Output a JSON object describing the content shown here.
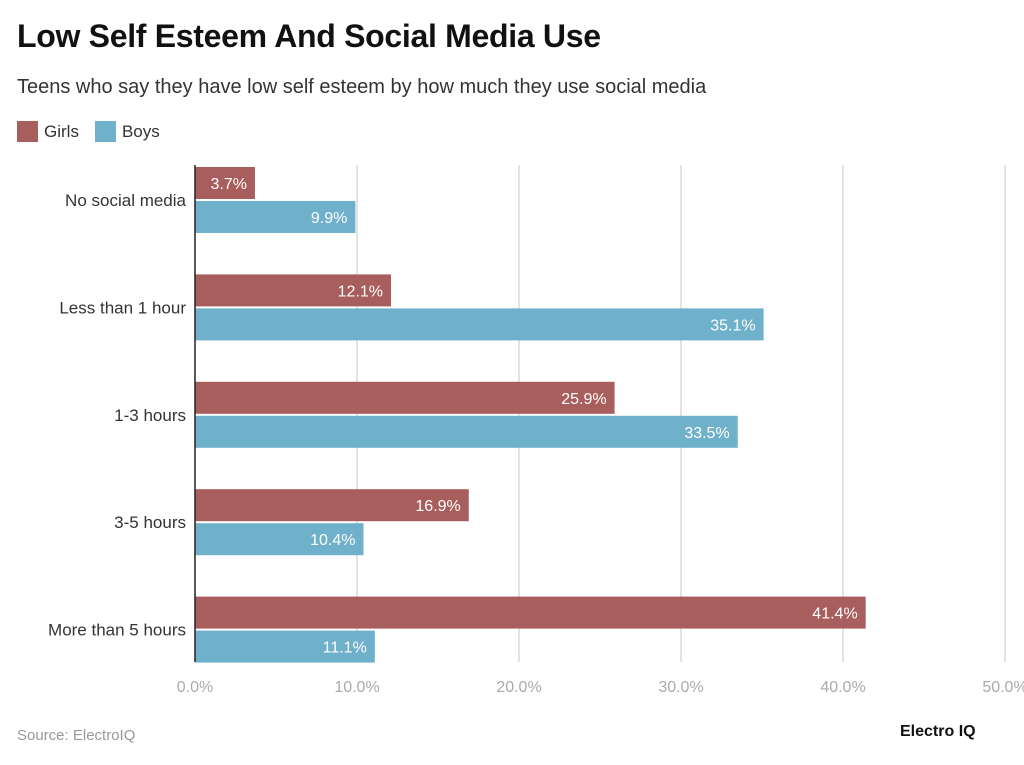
{
  "chart_data": {
    "type": "bar",
    "orientation": "horizontal",
    "title": "Low Self Esteem And Social Media Use",
    "subtitle": "Teens who say they have low self esteem by how much they use social media",
    "categories": [
      "No social media",
      "Less than 1 hour",
      "1-3 hours",
      "3-5 hours",
      "More than 5 hours"
    ],
    "series": [
      {
        "name": "Girls",
        "color": "#a85e5c",
        "values": [
          3.7,
          12.1,
          25.9,
          16.9,
          41.4
        ],
        "labels": [
          "3.7%",
          "12.1%",
          "25.9%",
          "16.9%",
          "41.4%"
        ]
      },
      {
        "name": "Boys",
        "color": "#6fb0cb",
        "values": [
          9.9,
          35.1,
          33.5,
          10.4,
          11.1
        ],
        "labels": [
          "9.9%",
          "35.1%",
          "33.5%",
          "10.4%",
          "11.1%"
        ]
      }
    ],
    "xlim": [
      0,
      50
    ],
    "xticks": [
      "0.0%",
      "10.0%",
      "20.0%",
      "30.0%",
      "40.0%",
      "50.0%"
    ],
    "grid": true,
    "legend": "top-left"
  },
  "source": "Source: ElectroIQ",
  "logo": "Electro IQ"
}
